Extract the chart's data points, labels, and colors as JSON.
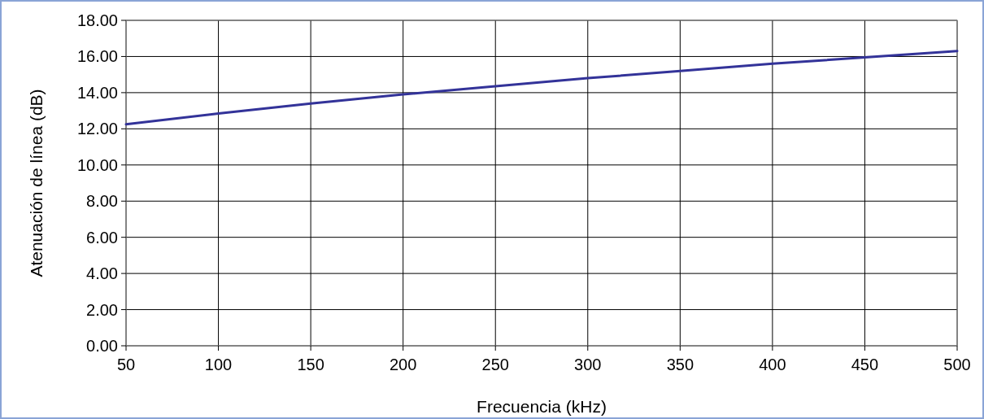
{
  "chart_data": {
    "type": "line",
    "xlabel": "Frecuencia (kHz)",
    "ylabel": "Atenuación de línea (dB)",
    "x": [
      50,
      100,
      150,
      200,
      250,
      300,
      350,
      400,
      450,
      500
    ],
    "series": [
      {
        "color": "#333399",
        "values": [
          12.25,
          12.85,
          13.4,
          13.9,
          14.35,
          14.8,
          15.2,
          15.6,
          15.95,
          16.3
        ]
      }
    ],
    "xlim": [
      50,
      500
    ],
    "xticks": [
      50,
      100,
      150,
      200,
      250,
      300,
      350,
      400,
      450,
      500
    ],
    "ylim": [
      0,
      18
    ],
    "yticks": [
      {
        "value": 0,
        "label": "0.00"
      },
      {
        "value": 2,
        "label": "2.00"
      },
      {
        "value": 4,
        "label": "4.00"
      },
      {
        "value": 6,
        "label": "6.00"
      },
      {
        "value": 8,
        "label": "8.00"
      },
      {
        "value": 10,
        "label": "10.00"
      },
      {
        "value": 12,
        "label": "12.00"
      },
      {
        "value": 14,
        "label": "14.00"
      },
      {
        "value": 16,
        "label": "16.00"
      },
      {
        "value": 18,
        "label": "18.00"
      }
    ],
    "grid": true,
    "marker": "none",
    "line_style": "solid"
  }
}
